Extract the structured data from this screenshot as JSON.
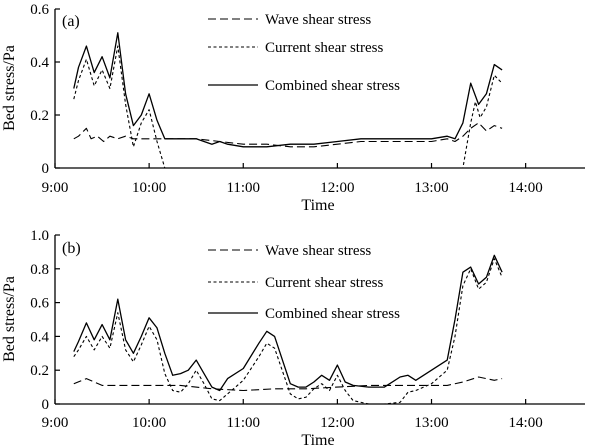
{
  "chart_data": [
    {
      "type": "line",
      "panel_label": "(a)",
      "xlabel": "Time",
      "ylabel": "Bed stress/Pa",
      "xlim": [
        "9:00",
        "14:00"
      ],
      "ylim": [
        0,
        0.6
      ],
      "x_ticks": [
        "9:00",
        "10:00",
        "11:00",
        "12:00",
        "13:00",
        "14:00"
      ],
      "y_ticks": [
        "0",
        "0.2",
        "0.4",
        "0.6"
      ],
      "grid": false,
      "legend": "top-right",
      "series": [
        {
          "name": "Wave shear stress",
          "style": "dashed",
          "x": [
            "9:12",
            "9:15",
            "9:20",
            "9:23",
            "9:27",
            "9:31",
            "9:35",
            "9:40",
            "9:45",
            "9:50",
            "10:00",
            "10:10",
            "10:20",
            "10:30",
            "10:45",
            "11:00",
            "11:15",
            "11:30",
            "11:45",
            "12:00",
            "12:15",
            "12:30",
            "12:45",
            "13:00",
            "13:10",
            "13:15",
            "13:20",
            "13:25",
            "13:30",
            "13:35",
            "13:40",
            "13:45"
          ],
          "y": [
            0.11,
            0.12,
            0.15,
            0.11,
            0.12,
            0.1,
            0.12,
            0.11,
            0.12,
            0.11,
            0.11,
            0.11,
            0.11,
            0.11,
            0.1,
            0.09,
            0.09,
            0.08,
            0.08,
            0.09,
            0.1,
            0.1,
            0.1,
            0.1,
            0.11,
            0.1,
            0.12,
            0.15,
            0.17,
            0.14,
            0.16,
            0.15
          ]
        },
        {
          "name": "Current shear stress",
          "style": "dotted",
          "x": [
            "9:12",
            "9:15",
            "9:20",
            "9:25",
            "9:30",
            "9:35",
            "9:40",
            "9:45",
            "9:50",
            "9:55",
            "10:00",
            "10:05",
            "10:10",
            "10:20",
            "11:00",
            "12:00",
            "13:00",
            "13:20",
            "13:25",
            "13:28",
            "13:31",
            "13:35",
            "13:40",
            "13:45"
          ],
          "y": [
            0.26,
            0.33,
            0.41,
            0.31,
            0.37,
            0.3,
            0.46,
            0.24,
            0.08,
            0.17,
            0.22,
            0.1,
            0.0,
            0.0,
            0.0,
            0.0,
            0.0,
            0.0,
            0.17,
            0.25,
            0.19,
            0.23,
            0.35,
            0.32
          ]
        },
        {
          "name": "Combined shear stress",
          "style": "solid",
          "x": [
            "9:12",
            "9:15",
            "9:20",
            "9:25",
            "9:30",
            "9:35",
            "9:40",
            "9:45",
            "9:50",
            "9:55",
            "10:00",
            "10:05",
            "10:10",
            "10:20",
            "10:30",
            "10:35",
            "10:40",
            "10:45",
            "10:50",
            "11:00",
            "11:15",
            "11:30",
            "11:45",
            "12:00",
            "12:15",
            "12:30",
            "12:45",
            "13:00",
            "13:10",
            "13:15",
            "13:20",
            "13:25",
            "13:30",
            "13:35",
            "13:40",
            "13:45"
          ],
          "y": [
            0.3,
            0.38,
            0.46,
            0.36,
            0.42,
            0.34,
            0.51,
            0.28,
            0.16,
            0.2,
            0.28,
            0.18,
            0.11,
            0.11,
            0.11,
            0.1,
            0.09,
            0.1,
            0.09,
            0.08,
            0.08,
            0.09,
            0.09,
            0.1,
            0.11,
            0.11,
            0.11,
            0.11,
            0.12,
            0.11,
            0.17,
            0.32,
            0.24,
            0.28,
            0.39,
            0.37
          ]
        }
      ]
    },
    {
      "type": "line",
      "panel_label": "(b)",
      "xlabel": "Time",
      "ylabel": "Bed stress/Pa",
      "xlim": [
        "9:00",
        "14:00"
      ],
      "ylim": [
        0,
        1.0
      ],
      "x_ticks": [
        "9:00",
        "10:00",
        "11:00",
        "12:00",
        "13:00",
        "14:00"
      ],
      "y_ticks": [
        "0",
        "0.2",
        "0.4",
        "0.6",
        "0.8",
        "1.0"
      ],
      "grid": false,
      "legend": "top-right",
      "series": [
        {
          "name": "Wave shear stress",
          "style": "dashed",
          "x": [
            "9:12",
            "9:20",
            "9:30",
            "9:40",
            "10:00",
            "10:20",
            "10:40",
            "11:00",
            "11:20",
            "11:40",
            "12:00",
            "12:20",
            "12:40",
            "13:00",
            "13:10",
            "13:20",
            "13:30",
            "13:40",
            "13:45"
          ],
          "y": [
            0.12,
            0.15,
            0.11,
            0.11,
            0.11,
            0.11,
            0.09,
            0.08,
            0.09,
            0.09,
            0.1,
            0.11,
            0.11,
            0.11,
            0.11,
            0.13,
            0.16,
            0.14,
            0.15
          ]
        },
        {
          "name": "Current shear stress",
          "style": "dotted",
          "x": [
            "9:12",
            "9:15",
            "9:20",
            "9:25",
            "9:30",
            "9:35",
            "9:40",
            "9:45",
            "9:50",
            "9:55",
            "10:00",
            "10:05",
            "10:10",
            "10:15",
            "10:20",
            "10:25",
            "10:30",
            "10:35",
            "10:40",
            "10:45",
            "10:50",
            "11:00",
            "11:10",
            "11:15",
            "11:20",
            "11:30",
            "11:35",
            "11:40",
            "11:45",
            "11:50",
            "11:55",
            "12:00",
            "12:05",
            "12:10",
            "12:20",
            "12:30",
            "12:40",
            "12:45",
            "12:50",
            "13:00",
            "13:10",
            "13:15",
            "13:20",
            "13:25",
            "13:30",
            "13:35",
            "13:40",
            "13:45"
          ],
          "y": [
            0.28,
            0.32,
            0.4,
            0.32,
            0.4,
            0.33,
            0.54,
            0.32,
            0.25,
            0.35,
            0.46,
            0.38,
            0.18,
            0.08,
            0.07,
            0.12,
            0.2,
            0.12,
            0.03,
            0.02,
            0.06,
            0.14,
            0.28,
            0.36,
            0.33,
            0.06,
            0.03,
            0.04,
            0.09,
            0.12,
            0.08,
            0.17,
            0.08,
            0.02,
            0.0,
            0.0,
            0.01,
            0.07,
            0.08,
            0.12,
            0.2,
            0.4,
            0.7,
            0.8,
            0.68,
            0.72,
            0.86,
            0.75
          ]
        },
        {
          "name": "Combined shear stress",
          "style": "solid",
          "x": [
            "9:12",
            "9:15",
            "9:20",
            "9:25",
            "9:30",
            "9:35",
            "9:40",
            "9:45",
            "9:50",
            "9:55",
            "10:00",
            "10:05",
            "10:10",
            "10:15",
            "10:20",
            "10:25",
            "10:30",
            "10:35",
            "10:40",
            "10:45",
            "10:50",
            "11:00",
            "11:10",
            "11:15",
            "11:20",
            "11:30",
            "11:35",
            "11:40",
            "11:45",
            "11:50",
            "11:55",
            "12:00",
            "12:05",
            "12:10",
            "12:20",
            "12:30",
            "12:40",
            "12:45",
            "12:50",
            "13:00",
            "13:10",
            "13:15",
            "13:20",
            "13:25",
            "13:30",
            "13:35",
            "13:40",
            "13:45"
          ],
          "y": [
            0.31,
            0.37,
            0.48,
            0.38,
            0.47,
            0.38,
            0.62,
            0.38,
            0.3,
            0.4,
            0.51,
            0.45,
            0.3,
            0.17,
            0.18,
            0.2,
            0.26,
            0.18,
            0.1,
            0.08,
            0.15,
            0.21,
            0.36,
            0.43,
            0.4,
            0.12,
            0.1,
            0.1,
            0.13,
            0.17,
            0.14,
            0.23,
            0.13,
            0.11,
            0.1,
            0.1,
            0.16,
            0.17,
            0.14,
            0.2,
            0.26,
            0.5,
            0.78,
            0.81,
            0.71,
            0.75,
            0.88,
            0.78
          ]
        }
      ]
    }
  ]
}
